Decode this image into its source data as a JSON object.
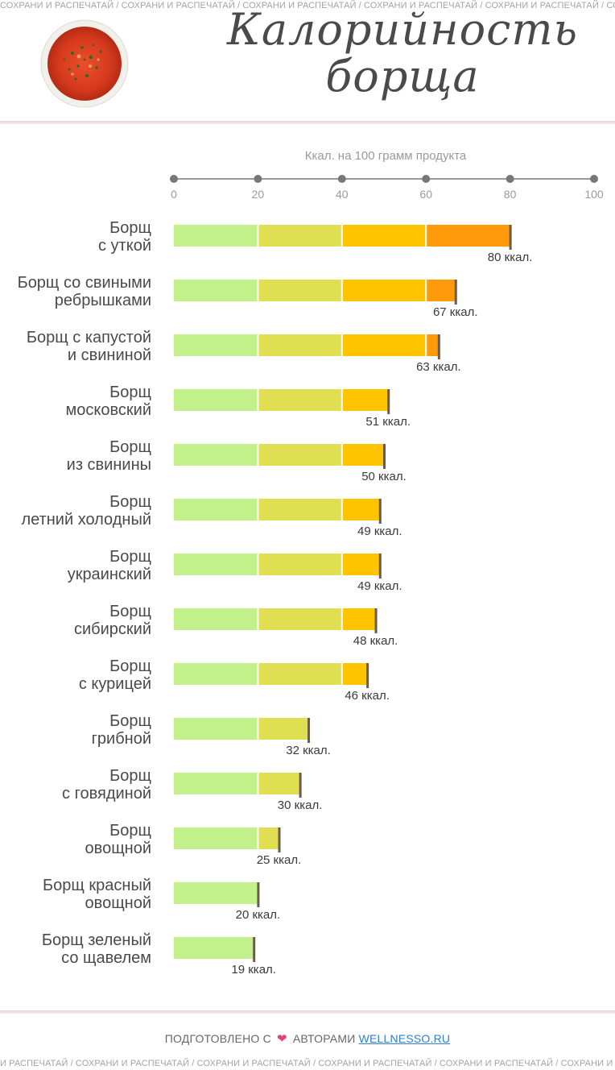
{
  "banner_text": "СОХРАНИ И РАСПЕЧАТАЙ",
  "title": "Калорийность\nборща",
  "footer": {
    "prefix": "ПОДГОТОВЛЕНО С",
    "middle": "АВТОРАМИ",
    "link": "WELLNESSO.RU",
    "icon": "heart-icon"
  },
  "colors": {
    "segments": [
      "#c2f08a",
      "#e0df52",
      "#ffc400",
      "#ff9a0a"
    ],
    "value_marker": "#6b5c4a",
    "axis": "#888888",
    "accent_rule": "#f3cfd8",
    "link": "#2e7fd0",
    "heart": "#e83e7b"
  },
  "chart_data": {
    "type": "bar",
    "orientation": "horizontal",
    "title": "Калорийность борща",
    "xlabel": "Ккал. на 100 грамм продукта",
    "ylabel": "",
    "xlim": [
      0,
      100
    ],
    "xticks": [
      0,
      20,
      40,
      60,
      80,
      100
    ],
    "grid": false,
    "color_bands": [
      0,
      20,
      40,
      60,
      80
    ],
    "value_suffix": " ккал.",
    "categories": [
      "Борщ\nс уткой",
      "Борщ со свиными\nребрышками",
      "Борщ с капустой\nи свининой",
      "Борщ\nмосковский",
      "Борщ\nиз свинины",
      "Борщ\nлетний холодный",
      "Борщ\nукраинский",
      "Борщ\nсибирский",
      "Борщ\nс курицей",
      "Борщ\nгрибной",
      "Борщ\nс говядиной",
      "Борщ\nовощной",
      "Борщ красный\nовощной",
      "Борщ зеленый\nсо щавелем"
    ],
    "values": [
      80,
      67,
      63,
      51,
      50,
      49,
      49,
      48,
      46,
      32,
      30,
      25,
      20,
      19
    ]
  }
}
